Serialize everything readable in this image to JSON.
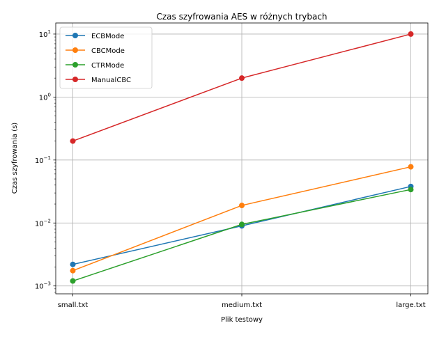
{
  "chart_data": {
    "type": "line",
    "title": "Czas szyfrowania AES w różnych trybach",
    "xlabel": "Plik testowy",
    "ylabel": "Czas szyfrowania (s)",
    "categories": [
      "small.txt",
      "medium.txt",
      "large.txt"
    ],
    "y_scale": "log",
    "ylim": [
      0.00075,
      15
    ],
    "y_ticks": [
      {
        "value": 0.001,
        "base": "10",
        "exp": "−3"
      },
      {
        "value": 0.01,
        "base": "10",
        "exp": "−2"
      },
      {
        "value": 0.1,
        "base": "10",
        "exp": "−1"
      },
      {
        "value": 1,
        "base": "10",
        "exp": "0"
      },
      {
        "value": 10,
        "base": "10",
        "exp": "1"
      }
    ],
    "grid": true,
    "legend_position": "top-left",
    "series": [
      {
        "name": "ECBMode",
        "color": "#1f77b4",
        "values": [
          0.0022,
          0.009,
          0.038
        ]
      },
      {
        "name": "CBCMode",
        "color": "#ff7f0e",
        "values": [
          0.00175,
          0.019,
          0.078
        ]
      },
      {
        "name": "CTRMode",
        "color": "#2ca02c",
        "values": [
          0.0012,
          0.0095,
          0.034
        ]
      },
      {
        "name": "ManualCBC",
        "color": "#d62728",
        "values": [
          0.2,
          2.0,
          10.0
        ]
      }
    ]
  }
}
